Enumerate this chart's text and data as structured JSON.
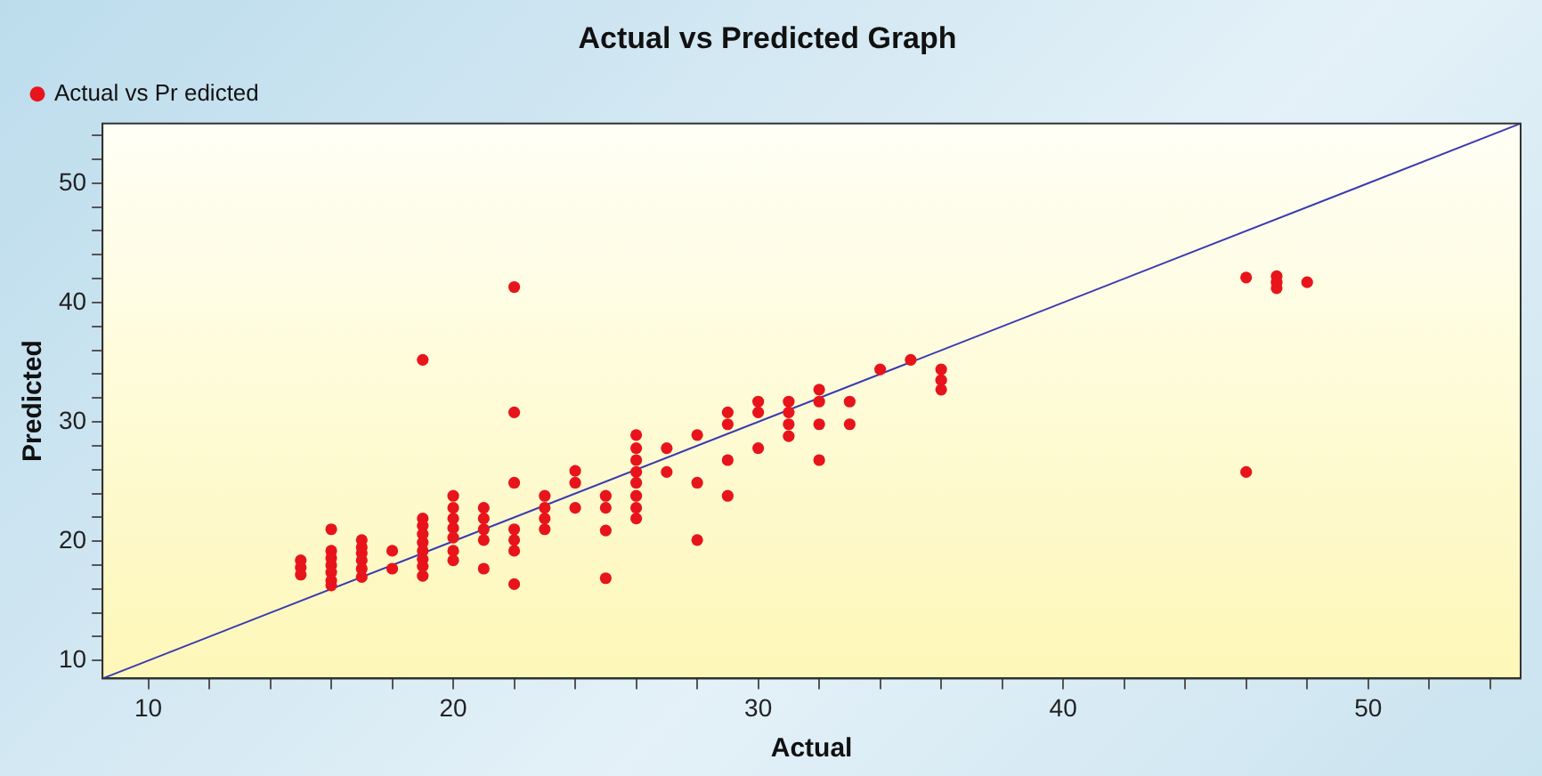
{
  "chart_data": {
    "type": "scatter",
    "title": "Actual vs Predicted Graph",
    "xlabel": "Actual",
    "ylabel": "Predicted",
    "xlim": [
      8.5,
      55
    ],
    "ylim": [
      8.5,
      55
    ],
    "xticks": [
      10,
      {
        "value": 12,
        "label": null
      },
      {
        "value": 14,
        "label": null
      },
      {
        "value": 16,
        "label": null
      },
      {
        "value": 18,
        "label": null
      },
      20,
      {
        "value": 22,
        "label": null
      },
      {
        "value": 24,
        "label": null
      },
      {
        "value": 26,
        "label": null
      },
      {
        "value": 28,
        "label": null
      },
      30,
      {
        "value": 32,
        "label": null
      },
      {
        "value": 34,
        "label": null
      },
      {
        "value": 36,
        "label": null
      },
      {
        "value": 38,
        "label": null
      },
      40,
      {
        "value": 42,
        "label": null
      },
      {
        "value": 44,
        "label": null
      },
      {
        "value": 46,
        "label": null
      },
      {
        "value": 48,
        "label": null
      },
      50,
      {
        "value": 52,
        "label": null
      },
      {
        "value": 54,
        "label": null
      }
    ],
    "yticks": [
      10,
      {
        "value": 12,
        "label": null
      },
      {
        "value": 14,
        "label": null
      },
      {
        "value": 16,
        "label": null
      },
      {
        "value": 18,
        "label": null
      },
      20,
      {
        "value": 22,
        "label": null
      },
      {
        "value": 24,
        "label": null
      },
      {
        "value": 26,
        "label": null
      },
      {
        "value": 28,
        "label": null
      },
      30,
      {
        "value": 32,
        "label": null
      },
      {
        "value": 34,
        "label": null
      },
      {
        "value": 36,
        "label": null
      },
      {
        "value": 38,
        "label": null
      },
      40,
      {
        "value": 42,
        "label": null
      },
      {
        "value": 44,
        "label": null
      },
      {
        "value": 46,
        "label": null
      },
      {
        "value": 48,
        "label": null
      },
      50,
      {
        "value": 52,
        "label": null
      },
      {
        "value": 54,
        "label": null
      }
    ],
    "grid": false,
    "legend": "top left",
    "marker": "circle",
    "series": [
      {
        "name": "Actual vs Pr edicted",
        "color": "#e8141b",
        "type": "scatter",
        "x": [
          15,
          15,
          15,
          16,
          16,
          16,
          16,
          16,
          16,
          16,
          17,
          17,
          17,
          17,
          17,
          17,
          18,
          18,
          19,
          19,
          19,
          19,
          19,
          19,
          19,
          19,
          19,
          20,
          20,
          20,
          20,
          20,
          20,
          20,
          21,
          21,
          21,
          21,
          21,
          22,
          22,
          22,
          22,
          22,
          22,
          22,
          23,
          23,
          23,
          23,
          24,
          24,
          24,
          25,
          25,
          25,
          25,
          26,
          26,
          26,
          26,
          26,
          26,
          26,
          26,
          27,
          27,
          28,
          28,
          28,
          29,
          29,
          29,
          29,
          30,
          30,
          30,
          31,
          31,
          31,
          31,
          32,
          32,
          32,
          32,
          33,
          33,
          34,
          35,
          36,
          36,
          36,
          46,
          46,
          47,
          47,
          47,
          48
        ],
        "values": [
          18.4,
          17.8,
          17.2,
          21.0,
          19.2,
          18.6,
          18.0,
          17.4,
          16.7,
          16.3,
          20.1,
          19.5,
          19.0,
          18.4,
          17.7,
          17.0,
          19.2,
          17.7,
          35.2,
          21.9,
          21.3,
          20.6,
          19.9,
          19.2,
          18.5,
          17.9,
          17.1,
          23.8,
          22.8,
          21.9,
          21.1,
          20.3,
          19.2,
          18.4,
          22.8,
          21.9,
          21.0,
          20.1,
          17.7,
          41.3,
          30.8,
          24.9,
          21.0,
          20.1,
          19.2,
          16.4,
          23.8,
          22.8,
          21.9,
          21.0,
          25.9,
          24.9,
          22.8,
          23.8,
          22.8,
          20.9,
          16.9,
          28.9,
          27.8,
          26.8,
          25.8,
          24.9,
          23.8,
          22.8,
          21.9,
          27.8,
          25.8,
          28.9,
          24.9,
          20.1,
          30.8,
          29.8,
          26.8,
          23.8,
          31.7,
          30.8,
          27.8,
          31.7,
          30.8,
          29.8,
          28.8,
          32.7,
          31.7,
          29.8,
          26.8,
          31.7,
          29.8,
          34.4,
          35.2,
          34.4,
          33.5,
          32.7,
          42.1,
          25.8,
          42.2,
          41.7,
          41.2,
          41.7
        ]
      },
      {
        "type": "line",
        "color": "#3a3ab0",
        "marker": "none",
        "x": [
          8.5,
          55
        ],
        "values": [
          8.5,
          55
        ]
      }
    ]
  }
}
